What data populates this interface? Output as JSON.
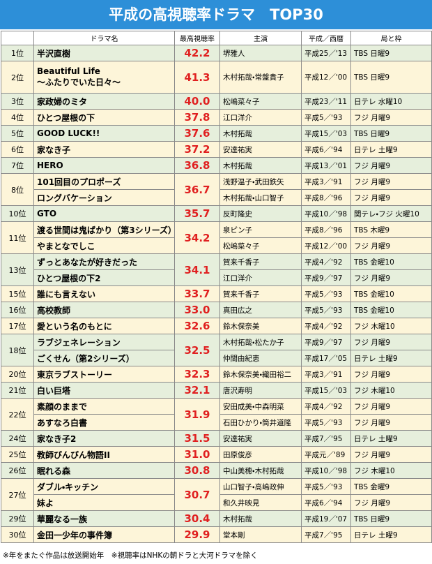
{
  "header": {
    "title": "平成の高視聴率ドラマ　TOP30"
  },
  "table": {
    "columns": [
      "",
      "ドラマ名",
      "最高視聴率",
      "主演",
      "平成／西暦",
      "局と枠"
    ],
    "rows": [
      {
        "rank": "1位",
        "rating": "42.2",
        "dramas": [
          {
            "title": "半沢直樹",
            "lead": "堺雅人",
            "year": "平成25／'13",
            "station": "TBS 日曜9"
          }
        ]
      },
      {
        "rank": "2位",
        "rating": "41.3",
        "dramas": [
          {
            "title": [
              "Beautiful Life",
              "〜ふたりでいた日々〜"
            ],
            "lead": "木村拓哉・常盤貴子",
            "year": "平成12／'00",
            "station": "TBS 日曜9"
          }
        ]
      },
      {
        "rank": "3位",
        "rating": "40.0",
        "dramas": [
          {
            "title": "家政婦のミタ",
            "lead": "松嶋菜々子",
            "year": "平成23／'11",
            "station": "日テレ 水曜10"
          }
        ]
      },
      {
        "rank": "4位",
        "rating": "37.8",
        "dramas": [
          {
            "title": "ひとつ屋根の下",
            "lead": "江口洋介",
            "year": "平成5／'93",
            "station": "フジ 月曜9"
          }
        ]
      },
      {
        "rank": "5位",
        "rating": "37.6",
        "dramas": [
          {
            "title": "GOOD LUCK!!",
            "lead": "木村拓哉",
            "year": "平成15／'03",
            "station": "TBS 日曜9"
          }
        ]
      },
      {
        "rank": "6位",
        "rating": "37.2",
        "dramas": [
          {
            "title": "家なき子",
            "lead": "安達祐実",
            "year": "平成6／'94",
            "station": "日テレ 土曜9"
          }
        ]
      },
      {
        "rank": "7位",
        "rating": "36.8",
        "dramas": [
          {
            "title": "HERO",
            "lead": "木村拓哉",
            "year": "平成13／'01",
            "station": "フジ 月曜9"
          }
        ]
      },
      {
        "rank": "8位",
        "rating": "36.7",
        "dramas": [
          {
            "title": "101回目のプロポーズ",
            "lead": "浅野温子・武田鉄矢",
            "year": "平成3／'91",
            "station": "フジ 月曜9"
          },
          {
            "title": "ロングバケーション",
            "lead": "木村拓哉・山口智子",
            "year": "平成8／'96",
            "station": "フジ 月曜9"
          }
        ]
      },
      {
        "rank": "10位",
        "rating": "35.7",
        "dramas": [
          {
            "title": "GTO",
            "lead": "反町隆史",
            "year": "平成10／'98",
            "station": "関テレ・フジ 火曜10"
          }
        ]
      },
      {
        "rank": "11位",
        "rating": "34.2",
        "dramas": [
          {
            "title": "渡る世間は鬼ばかり（第3シリーズ）",
            "lead": "泉ピン子",
            "year": "平成8／'96",
            "station": "TBS 木曜9"
          },
          {
            "title": "やまとなでしこ",
            "lead": "松嶋菜々子",
            "year": "平成12／'00",
            "station": "フジ 月曜9"
          }
        ]
      },
      {
        "rank": "13位",
        "rating": "34.1",
        "dramas": [
          {
            "title": "ずっとあなたが好きだった",
            "lead": "賀来千香子",
            "year": "平成4／'92",
            "station": "TBS 金曜10"
          },
          {
            "title": "ひとつ屋根の下2",
            "lead": "江口洋介",
            "year": "平成9／'97",
            "station": "フジ 月曜9"
          }
        ]
      },
      {
        "rank": "15位",
        "rating": "33.7",
        "dramas": [
          {
            "title": "誰にも言えない",
            "lead": "賀来千香子",
            "year": "平成5／'93",
            "station": "TBS 金曜10"
          }
        ]
      },
      {
        "rank": "16位",
        "rating": "33.0",
        "dramas": [
          {
            "title": "高校教師",
            "lead": "真田広之",
            "year": "平成5／'93",
            "station": "TBS 金曜10"
          }
        ]
      },
      {
        "rank": "17位",
        "rating": "32.6",
        "dramas": [
          {
            "title": "愛という名のもとに",
            "lead": "鈴木保奈美",
            "year": "平成4／'92",
            "station": "フジ 木曜10"
          }
        ]
      },
      {
        "rank": "18位",
        "rating": "32.5",
        "dramas": [
          {
            "title": "ラブジェネレーション",
            "lead": "木村拓哉・松たか子",
            "year": "平成9／'97",
            "station": "フジ 月曜9"
          },
          {
            "title": "ごくせん（第2シリーズ）",
            "lead": "仲間由紀恵",
            "year": "平成17／'05",
            "station": "日テレ 土曜9"
          }
        ]
      },
      {
        "rank": "20位",
        "rating": "32.3",
        "dramas": [
          {
            "title": "東京ラブストーリー",
            "lead": "鈴木保奈美・織田裕二",
            "year": "平成3／'91",
            "station": "フジ 月曜9"
          }
        ]
      },
      {
        "rank": "21位",
        "rating": "32.1",
        "dramas": [
          {
            "title": "白い巨塔",
            "lead": "唐沢寿明",
            "year": "平成15／'03",
            "station": "フジ 木曜10"
          }
        ]
      },
      {
        "rank": "22位",
        "rating": "31.9",
        "dramas": [
          {
            "title": "素顔のままで",
            "lead": "安田成美・中森明菜",
            "year": "平成4／'92",
            "station": "フジ 月曜9"
          },
          {
            "title": "あすなろ白書",
            "lead": "石田ひかり・筒井道隆",
            "year": "平成5／'93",
            "station": "フジ 月曜9"
          }
        ]
      },
      {
        "rank": "24位",
        "rating": "31.5",
        "dramas": [
          {
            "title": "家なき子2",
            "lead": "安達祐実",
            "year": "平成7／'95",
            "station": "日テレ 土曜9"
          }
        ]
      },
      {
        "rank": "25位",
        "rating": "31.0",
        "dramas": [
          {
            "title": "教師びんびん物語II",
            "lead": "田原俊彦",
            "year": "平成元／'89",
            "station": "フジ 月曜9"
          }
        ]
      },
      {
        "rank": "26位",
        "rating": "30.8",
        "dramas": [
          {
            "title": "眠れる森",
            "lead": "中山美穂・木村拓哉",
            "year": "平成10／'98",
            "station": "フジ 木曜10"
          }
        ]
      },
      {
        "rank": "27位",
        "rating": "30.7",
        "dramas": [
          {
            "title": "ダブル・キッチン",
            "lead": "山口智子・高嶋政伸",
            "year": "平成5／'93",
            "station": "TBS 金曜9"
          },
          {
            "title": "妹よ",
            "lead": "和久井映見",
            "year": "平成6／'94",
            "station": "フジ 月曜9"
          }
        ]
      },
      {
        "rank": "29位",
        "rating": "30.4",
        "dramas": [
          {
            "title": "華麗なる一族",
            "lead": "木村拓哉",
            "year": "平成19／'07",
            "station": "TBS 日曜9"
          }
        ]
      },
      {
        "rank": "30位",
        "rating": "29.9",
        "dramas": [
          {
            "title": "金田一少年の事件簿",
            "lead": "堂本剛",
            "year": "平成7／'95",
            "station": "日テレ 土曜9"
          }
        ]
      }
    ]
  },
  "footer": {
    "note": "※年をまたぐ作品は放送開始年　※視聴率はNHKの朝ドラと大河ドラマを除く"
  }
}
